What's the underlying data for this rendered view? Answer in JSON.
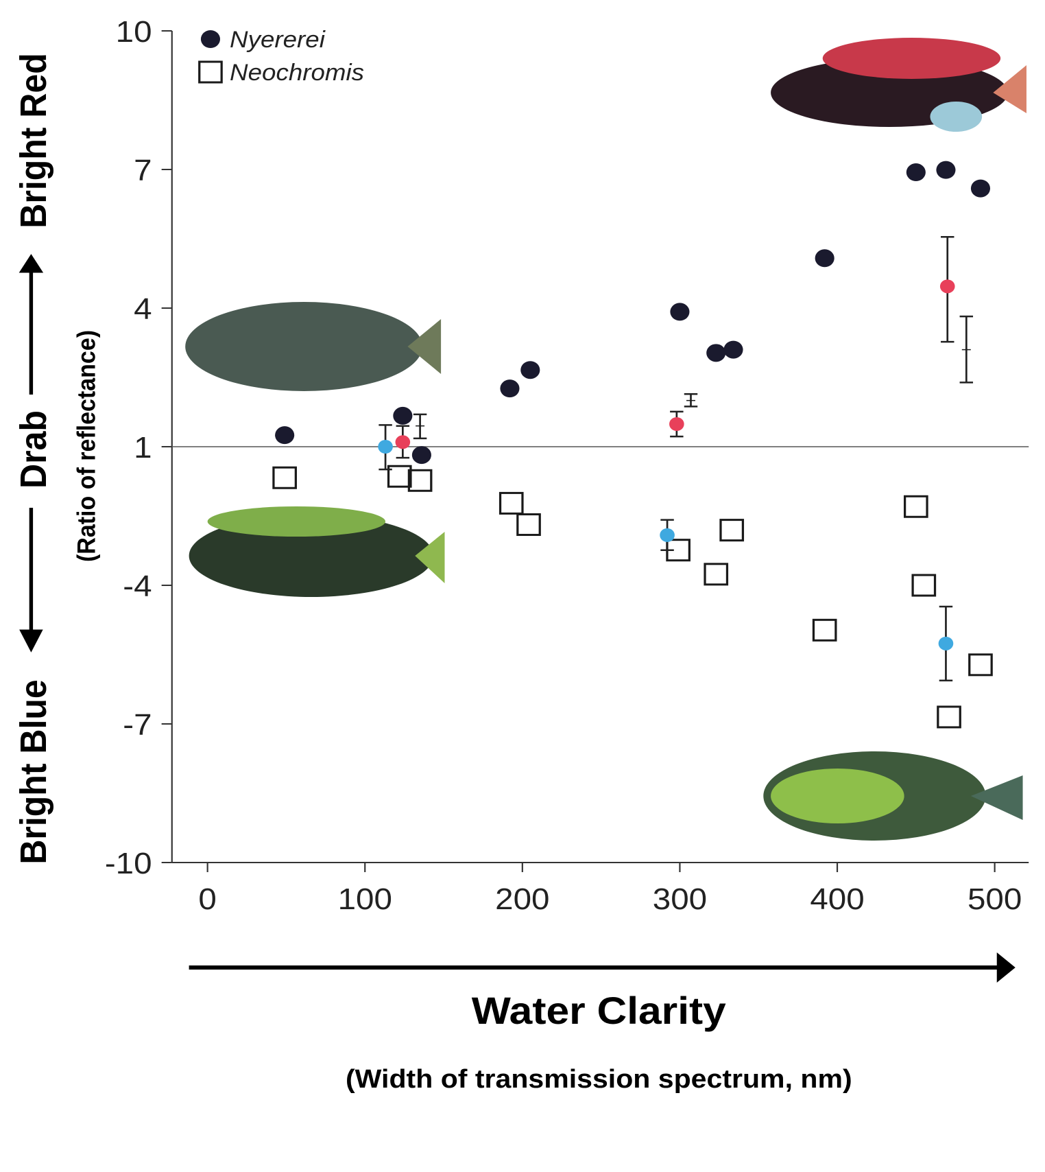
{
  "chart_data": {
    "type": "scatter",
    "y_axis_texts": {
      "top": "Bright Red",
      "middle": "Drab",
      "bottom": "Bright Blue",
      "label": "(Ratio of reflectance)"
    },
    "x_axis_texts": {
      "label": "Water Clarity",
      "sublabel": "(Width of transmission spectrum, nm)"
    },
    "xlim": [
      -22.6,
      521.6
    ],
    "xticks": [
      0,
      100,
      200,
      300,
      400,
      500
    ],
    "ylim": [
      -10,
      10
    ],
    "yticks": [
      10,
      7,
      4,
      1,
      -4,
      -7,
      -10
    ],
    "y_scale": "piecewise-even-ticks",
    "hline": 1,
    "legend": "top-left",
    "series": [
      {
        "name": "Nyererei",
        "marker": "filled-circle",
        "color": "#1a1a2e",
        "x": [
          49,
          124,
          136,
          192,
          205,
          300,
          323,
          334,
          392,
          450,
          469,
          491
        ],
        "values": [
          1.25,
          1.67,
          0.7,
          2.26,
          2.66,
          3.92,
          3.03,
          3.1,
          5.08,
          6.94,
          6.99,
          6.59
        ]
      },
      {
        "name": "Neochromis",
        "marker": "open-square",
        "color": "#1a1a1a",
        "x": [
          49,
          122,
          135,
          193,
          204,
          299,
          323,
          333,
          392,
          450,
          455,
          491,
          471
        ],
        "values": [
          -0.12,
          -0.07,
          -0.22,
          -1.04,
          -1.81,
          -2.73,
          -3.6,
          -2.01,
          -4.97,
          -1.16,
          -4.0,
          -5.72,
          -6.85
        ]
      },
      {
        "marker": "error-point",
        "color": "#e8405a",
        "x": [
          124,
          298,
          470
        ],
        "values": [
          1.1,
          1.49,
          4.47
        ],
        "lower": [
          0.6,
          1.22,
          3.27
        ],
        "upper": [
          1.45,
          1.76,
          5.54
        ]
      },
      {
        "marker": "error-point",
        "color": "#3fa9e0",
        "x": [
          113,
          292,
          469
        ],
        "values": [
          1.0,
          -2.19,
          -5.26
        ],
        "lower": [
          0.18,
          -2.73,
          -6.06
        ],
        "upper": [
          1.47,
          -1.64,
          -4.46
        ]
      },
      {
        "marker": "error-only",
        "color": "#1a1a1a",
        "x": [
          135,
          307,
          482
        ],
        "values": [
          1.45,
          2.0,
          3.1
        ],
        "lower": [
          1.18,
          1.87,
          2.39
        ],
        "upper": [
          1.7,
          2.14,
          3.82
        ]
      }
    ]
  }
}
